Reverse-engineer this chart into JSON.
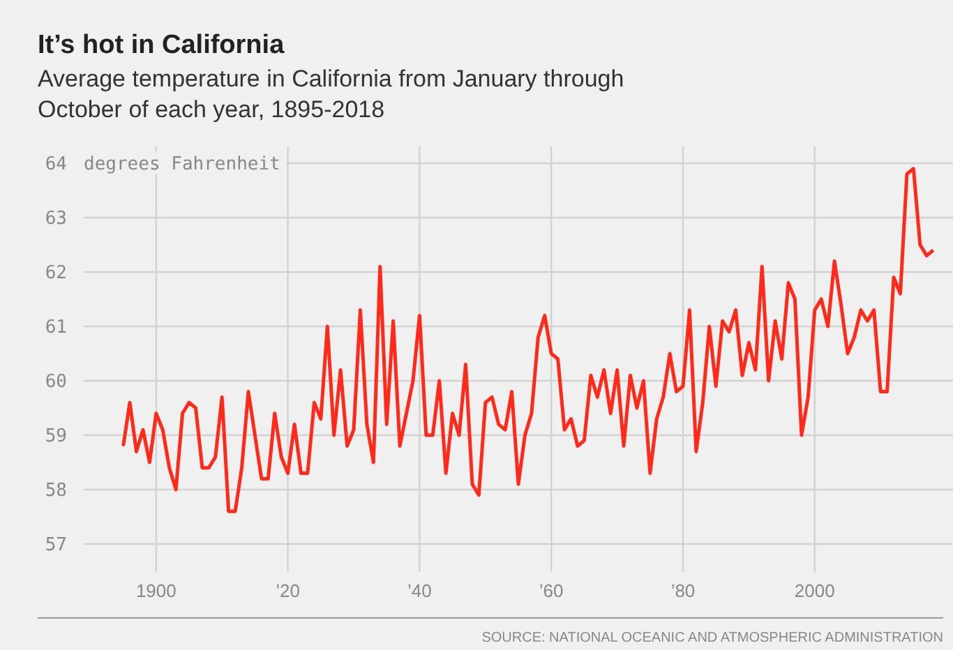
{
  "chart_data": {
    "type": "line",
    "title": "It’s hot in California",
    "subtitle": "Average temperature in California from January through October of each year, 1895-2018",
    "ylabel": "degrees Fahrenheit",
    "annotations": [
      "SOURCE: NATIONAL OCEANIC AND ATMOSPHERIC ADMINISTRATION"
    ],
    "x": [
      1895,
      1896,
      1897,
      1898,
      1899,
      1900,
      1901,
      1902,
      1903,
      1904,
      1905,
      1906,
      1907,
      1908,
      1909,
      1910,
      1911,
      1912,
      1913,
      1914,
      1915,
      1916,
      1917,
      1918,
      1919,
      1920,
      1921,
      1922,
      1923,
      1924,
      1925,
      1926,
      1927,
      1928,
      1929,
      1930,
      1931,
      1932,
      1933,
      1934,
      1935,
      1936,
      1937,
      1938,
      1939,
      1940,
      1941,
      1942,
      1943,
      1944,
      1945,
      1946,
      1947,
      1948,
      1949,
      1950,
      1951,
      1952,
      1953,
      1954,
      1955,
      1956,
      1957,
      1958,
      1959,
      1960,
      1961,
      1962,
      1963,
      1964,
      1965,
      1966,
      1967,
      1968,
      1969,
      1970,
      1971,
      1972,
      1973,
      1974,
      1975,
      1976,
      1977,
      1978,
      1979,
      1980,
      1981,
      1982,
      1983,
      1984,
      1985,
      1986,
      1987,
      1988,
      1989,
      1990,
      1991,
      1992,
      1993,
      1994,
      1995,
      1996,
      1997,
      1998,
      1999,
      2000,
      2001,
      2002,
      2003,
      2004,
      2005,
      2006,
      2007,
      2008,
      2009,
      2010,
      2011,
      2012,
      2013,
      2014,
      2015,
      2016,
      2017,
      2018
    ],
    "series": [
      {
        "color": "#ff2a1a",
        "values": [
          58.8,
          59.6,
          58.7,
          59.1,
          58.5,
          59.4,
          59.1,
          58.4,
          58.0,
          59.4,
          59.6,
          59.5,
          58.4,
          58.4,
          58.6,
          59.7,
          57.6,
          57.6,
          58.4,
          59.8,
          59.0,
          58.2,
          58.2,
          59.4,
          58.6,
          58.3,
          59.2,
          58.3,
          58.3,
          59.6,
          59.3,
          61.0,
          59.0,
          60.2,
          58.8,
          59.1,
          61.3,
          59.2,
          58.5,
          62.1,
          59.2,
          61.1,
          58.8,
          59.4,
          60.0,
          61.2,
          59.0,
          59.0,
          60.0,
          58.3,
          59.4,
          59.0,
          60.3,
          58.1,
          57.9,
          59.6,
          59.7,
          59.2,
          59.1,
          59.8,
          58.1,
          59.0,
          59.4,
          60.8,
          61.2,
          60.5,
          60.4,
          59.1,
          59.3,
          58.8,
          58.9,
          60.1,
          59.7,
          60.2,
          59.4,
          60.2,
          58.8,
          60.1,
          59.5,
          60.0,
          58.3,
          59.3,
          59.7,
          60.5,
          59.8,
          59.9,
          61.3,
          58.7,
          59.6,
          61.0,
          59.9,
          61.1,
          60.9,
          61.3,
          60.1,
          60.7,
          60.2,
          62.1,
          60.0,
          61.1,
          60.4,
          61.8,
          61.5,
          59.0,
          59.7,
          61.3,
          61.5,
          61.0,
          62.2,
          61.4,
          60.5,
          60.8,
          61.3,
          61.1,
          61.3,
          59.8,
          59.8,
          61.9,
          61.6,
          63.8,
          63.9,
          62.5,
          62.3,
          62.4
        ]
      }
    ],
    "xlim": [
      1889,
      2021
    ],
    "xticks": [
      1900,
      {
        "value": 1920,
        "label": "’20"
      },
      {
        "value": 1940,
        "label": "’40"
      },
      {
        "value": 1960,
        "label": "’60"
      },
      {
        "value": 1980,
        "label": "’80"
      },
      2000
    ],
    "ylim": [
      57,
      64
    ],
    "yticks": [
      57,
      58,
      59,
      60,
      61,
      62,
      63,
      64
    ],
    "grid": true,
    "line_style": "solid",
    "marker": "none"
  }
}
